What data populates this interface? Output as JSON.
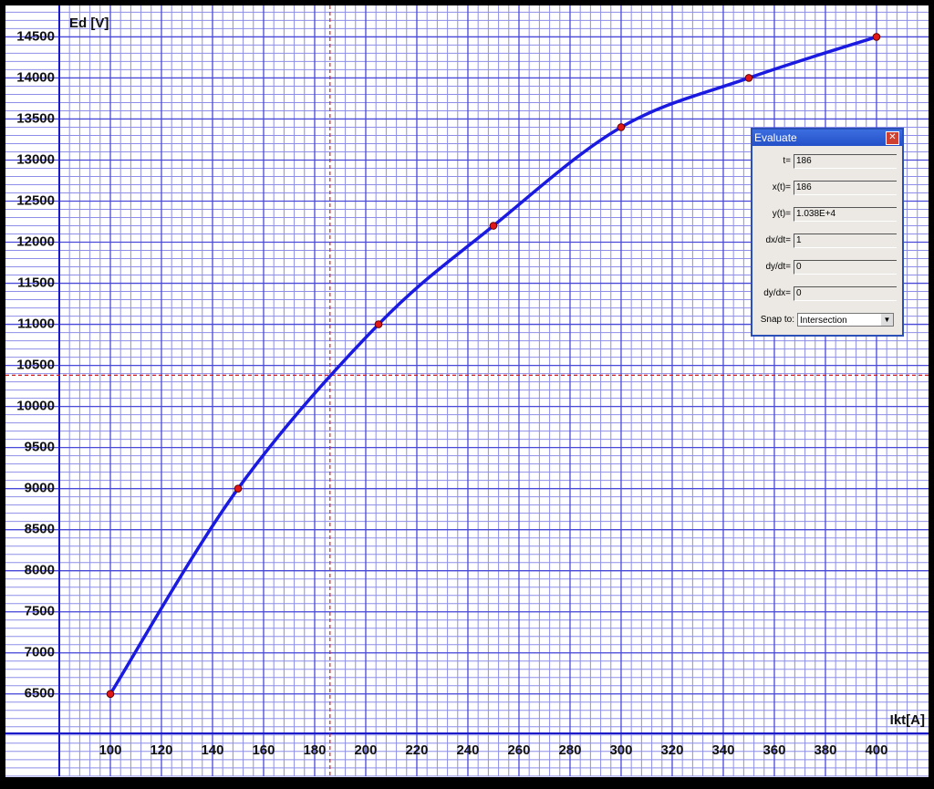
{
  "chart_data": {
    "type": "line",
    "x_label": "Ikt[A]",
    "y_label": "Ed [V]",
    "x": [
      100,
      150,
      205,
      250,
      300,
      350,
      400
    ],
    "series": [
      {
        "color": "#1a1ae0",
        "values": [
          6500,
          9000,
          11000,
          12200,
          13400,
          14000,
          14500
        ]
      }
    ],
    "marker_color": "#e01818",
    "xlim": [
      80,
      419.3
    ],
    "ylim": [
      6020,
      14860
    ],
    "xticks": [
      100,
      120,
      140,
      160,
      180,
      200,
      220,
      240,
      260,
      280,
      300,
      320,
      340,
      360,
      380,
      400
    ],
    "yticks": [
      6500,
      7000,
      7500,
      8000,
      8500,
      9000,
      9500,
      10000,
      10500,
      11000,
      11500,
      12000,
      12500,
      13000,
      13500,
      14000,
      14500
    ],
    "grid": true,
    "crosshair": {
      "x": 186,
      "y": 10380,
      "color": "#d02020"
    }
  },
  "dialog": {
    "title": "Evaluate",
    "fields": [
      {
        "label": "t=",
        "value": "186"
      },
      {
        "label": "x(t)=",
        "value": "186"
      },
      {
        "label": "y(t)=",
        "value": "1.038E+4"
      },
      {
        "label": "dx/dt=",
        "value": "1"
      },
      {
        "label": "dy/dt=",
        "value": "0"
      },
      {
        "label": "dy/dx=",
        "value": "0"
      }
    ],
    "snap_label": "Snap to:",
    "snap_value": "Intersection"
  }
}
